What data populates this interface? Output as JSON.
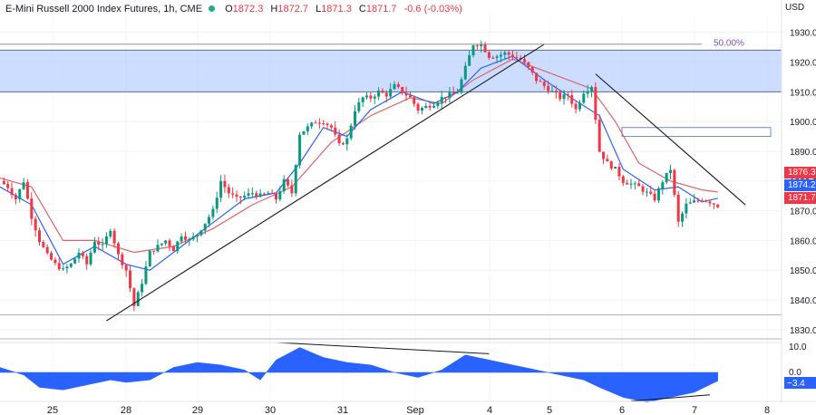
{
  "header": {
    "symbol": "E-Mini Russell 2000 Index Futures, 1h, CME",
    "open_label": "O",
    "open": "1872.3",
    "high_label": "H",
    "high": "1872.7",
    "low_label": "L",
    "low": "1871.3",
    "close_label": "C",
    "close": "1871.7",
    "change": "-0.6 (-0.03%)"
  },
  "currency": "USD",
  "price_tags": [
    {
      "value": "1876.3",
      "color": "#f23645"
    },
    {
      "value": "1874.2",
      "color": "#2962ff"
    },
    {
      "value": "1871.7",
      "color": "#f23645"
    }
  ],
  "fib_label": "50.00%",
  "colors": {
    "up": "#089981",
    "down": "#f23645",
    "ma_fast": "#2962ff",
    "ma_slow": "#e0636b",
    "zone": "#bbd2ff",
    "osc": "#2962ff"
  },
  "chart_data": {
    "type": "candlestick",
    "title": "E-Mini Russell 2000 Index Futures, 1h, CME",
    "ylim": [
      1826,
      1936
    ],
    "y_ticks": [
      1830,
      1840,
      1850,
      1860,
      1870,
      1880,
      1890,
      1900,
      1910,
      1920,
      1930
    ],
    "x_ticks": [
      "25",
      "28",
      "29",
      "30",
      "31",
      "Sep",
      "4",
      "5",
      "6",
      "7",
      "8"
    ],
    "resistance_zone": [
      1910,
      1924
    ],
    "support_level": 1835,
    "small_zone": [
      1895,
      1898
    ],
    "price_path": [
      [
        0,
        1880
      ],
      [
        2,
        1878
      ],
      [
        4,
        1874
      ],
      [
        6,
        1880
      ],
      [
        8,
        1868
      ],
      [
        10,
        1860
      ],
      [
        12,
        1855
      ],
      [
        14,
        1852
      ],
      [
        16,
        1850
      ],
      [
        18,
        1852
      ],
      [
        20,
        1856
      ],
      [
        22,
        1852
      ],
      [
        24,
        1860
      ],
      [
        26,
        1858
      ],
      [
        28,
        1864
      ],
      [
        30,
        1855
      ],
      [
        32,
        1850
      ],
      [
        34,
        1838
      ],
      [
        36,
        1846
      ],
      [
        38,
        1856
      ],
      [
        40,
        1858
      ],
      [
        42,
        1860
      ],
      [
        44,
        1857
      ],
      [
        46,
        1862
      ],
      [
        48,
        1860
      ],
      [
        50,
        1862
      ],
      [
        52,
        1866
      ],
      [
        54,
        1870
      ],
      [
        56,
        1880
      ],
      [
        58,
        1876
      ],
      [
        60,
        1874
      ],
      [
        62,
        1875
      ],
      [
        64,
        1876
      ],
      [
        66,
        1875
      ],
      [
        68,
        1876
      ],
      [
        70,
        1874
      ],
      [
        72,
        1880
      ],
      [
        74,
        1876
      ],
      [
        76,
        1896
      ],
      [
        78,
        1898
      ],
      [
        80,
        1900
      ],
      [
        82,
        1900
      ],
      [
        84,
        1898
      ],
      [
        86,
        1892
      ],
      [
        88,
        1894
      ],
      [
        90,
        1904
      ],
      [
        92,
        1908
      ],
      [
        94,
        1908
      ],
      [
        96,
        1910
      ],
      [
        98,
        1909
      ],
      [
        100,
        1912
      ],
      [
        102,
        1910
      ],
      [
        104,
        1908
      ],
      [
        106,
        1904
      ],
      [
        108,
        1905
      ],
      [
        110,
        1906
      ],
      [
        112,
        1908
      ],
      [
        114,
        1909
      ],
      [
        116,
        1910
      ],
      [
        118,
        1918
      ],
      [
        120,
        1926
      ],
      [
        122,
        1926
      ],
      [
        124,
        1922
      ],
      [
        126,
        1922
      ],
      [
        128,
        1923
      ],
      [
        130,
        1922
      ],
      [
        132,
        1921
      ],
      [
        134,
        1918
      ],
      [
        136,
        1914
      ],
      [
        138,
        1912
      ],
      [
        140,
        1910
      ],
      [
        142,
        1908
      ],
      [
        144,
        1909
      ],
      [
        146,
        1904
      ],
      [
        148,
        1910
      ],
      [
        150,
        1912
      ],
      [
        152,
        1890
      ],
      [
        154,
        1886
      ],
      [
        156,
        1884
      ],
      [
        158,
        1880
      ],
      [
        160,
        1879
      ],
      [
        162,
        1878
      ],
      [
        164,
        1876
      ],
      [
        166,
        1874
      ],
      [
        168,
        1880
      ],
      [
        170,
        1884
      ],
      [
        172,
        1866
      ],
      [
        174,
        1872
      ],
      [
        176,
        1873
      ],
      [
        178,
        1874
      ],
      [
        180,
        1873
      ],
      [
        182,
        1871.7
      ]
    ],
    "ma_fast": [
      [
        0,
        1878
      ],
      [
        8,
        1872
      ],
      [
        16,
        1852
      ],
      [
        24,
        1858
      ],
      [
        32,
        1852
      ],
      [
        38,
        1850
      ],
      [
        46,
        1858
      ],
      [
        54,
        1866
      ],
      [
        62,
        1874
      ],
      [
        70,
        1876
      ],
      [
        76,
        1886
      ],
      [
        82,
        1898
      ],
      [
        88,
        1895
      ],
      [
        94,
        1904
      ],
      [
        102,
        1910
      ],
      [
        110,
        1906
      ],
      [
        116,
        1910
      ],
      [
        122,
        1918
      ],
      [
        130,
        1922
      ],
      [
        138,
        1914
      ],
      [
        146,
        1907
      ],
      [
        152,
        1902
      ],
      [
        158,
        1884
      ],
      [
        166,
        1877
      ],
      [
        172,
        1878
      ],
      [
        178,
        1873
      ],
      [
        182,
        1874.2
      ]
    ],
    "ma_slow": [
      [
        0,
        1881
      ],
      [
        8,
        1878
      ],
      [
        16,
        1860
      ],
      [
        24,
        1860
      ],
      [
        34,
        1856
      ],
      [
        44,
        1858
      ],
      [
        54,
        1864
      ],
      [
        64,
        1872
      ],
      [
        74,
        1878
      ],
      [
        84,
        1893
      ],
      [
        94,
        1902
      ],
      [
        104,
        1908
      ],
      [
        112,
        1906
      ],
      [
        120,
        1914
      ],
      [
        130,
        1921
      ],
      [
        140,
        1916
      ],
      [
        150,
        1911
      ],
      [
        156,
        1900
      ],
      [
        162,
        1886
      ],
      [
        170,
        1880
      ],
      [
        178,
        1877
      ],
      [
        182,
        1876.3
      ]
    ],
    "trendlines": [
      {
        "from": [
          27,
          1833
        ],
        "to": [
          138,
          1926
        ]
      },
      {
        "from": [
          151,
          1916
        ],
        "to": [
          189,
          1872
        ]
      },
      {
        "from": [
          0,
          1926
        ],
        "to": [
          178,
          1926
        ]
      }
    ],
    "oscillator": {
      "ticks": [
        "10.0",
        "0.0"
      ],
      "last_value": "−3.4",
      "values": [
        [
          0,
          2
        ],
        [
          6,
          -1
        ],
        [
          10,
          -6
        ],
        [
          16,
          -7
        ],
        [
          22,
          -5
        ],
        [
          28,
          -3
        ],
        [
          32,
          -4
        ],
        [
          38,
          -3
        ],
        [
          44,
          2
        ],
        [
          50,
          4
        ],
        [
          56,
          3
        ],
        [
          62,
          1
        ],
        [
          66,
          -3
        ],
        [
          70,
          5
        ],
        [
          76,
          10
        ],
        [
          82,
          6
        ],
        [
          88,
          4
        ],
        [
          94,
          3
        ],
        [
          100,
          0
        ],
        [
          106,
          -2
        ],
        [
          112,
          1
        ],
        [
          118,
          7
        ],
        [
          124,
          5
        ],
        [
          130,
          3
        ],
        [
          136,
          1
        ],
        [
          142,
          -1
        ],
        [
          148,
          -3
        ],
        [
          152,
          -6
        ],
        [
          158,
          -10
        ],
        [
          164,
          -12
        ],
        [
          170,
          -10
        ],
        [
          176,
          -8
        ],
        [
          182,
          -3.4
        ]
      ],
      "divergence_lines": [
        {
          "from": [
            70,
            12
          ],
          "to": [
            124,
            7.5
          ]
        },
        {
          "from": [
            160,
            -11.5
          ],
          "to": [
            180,
            -9
          ]
        }
      ]
    }
  }
}
